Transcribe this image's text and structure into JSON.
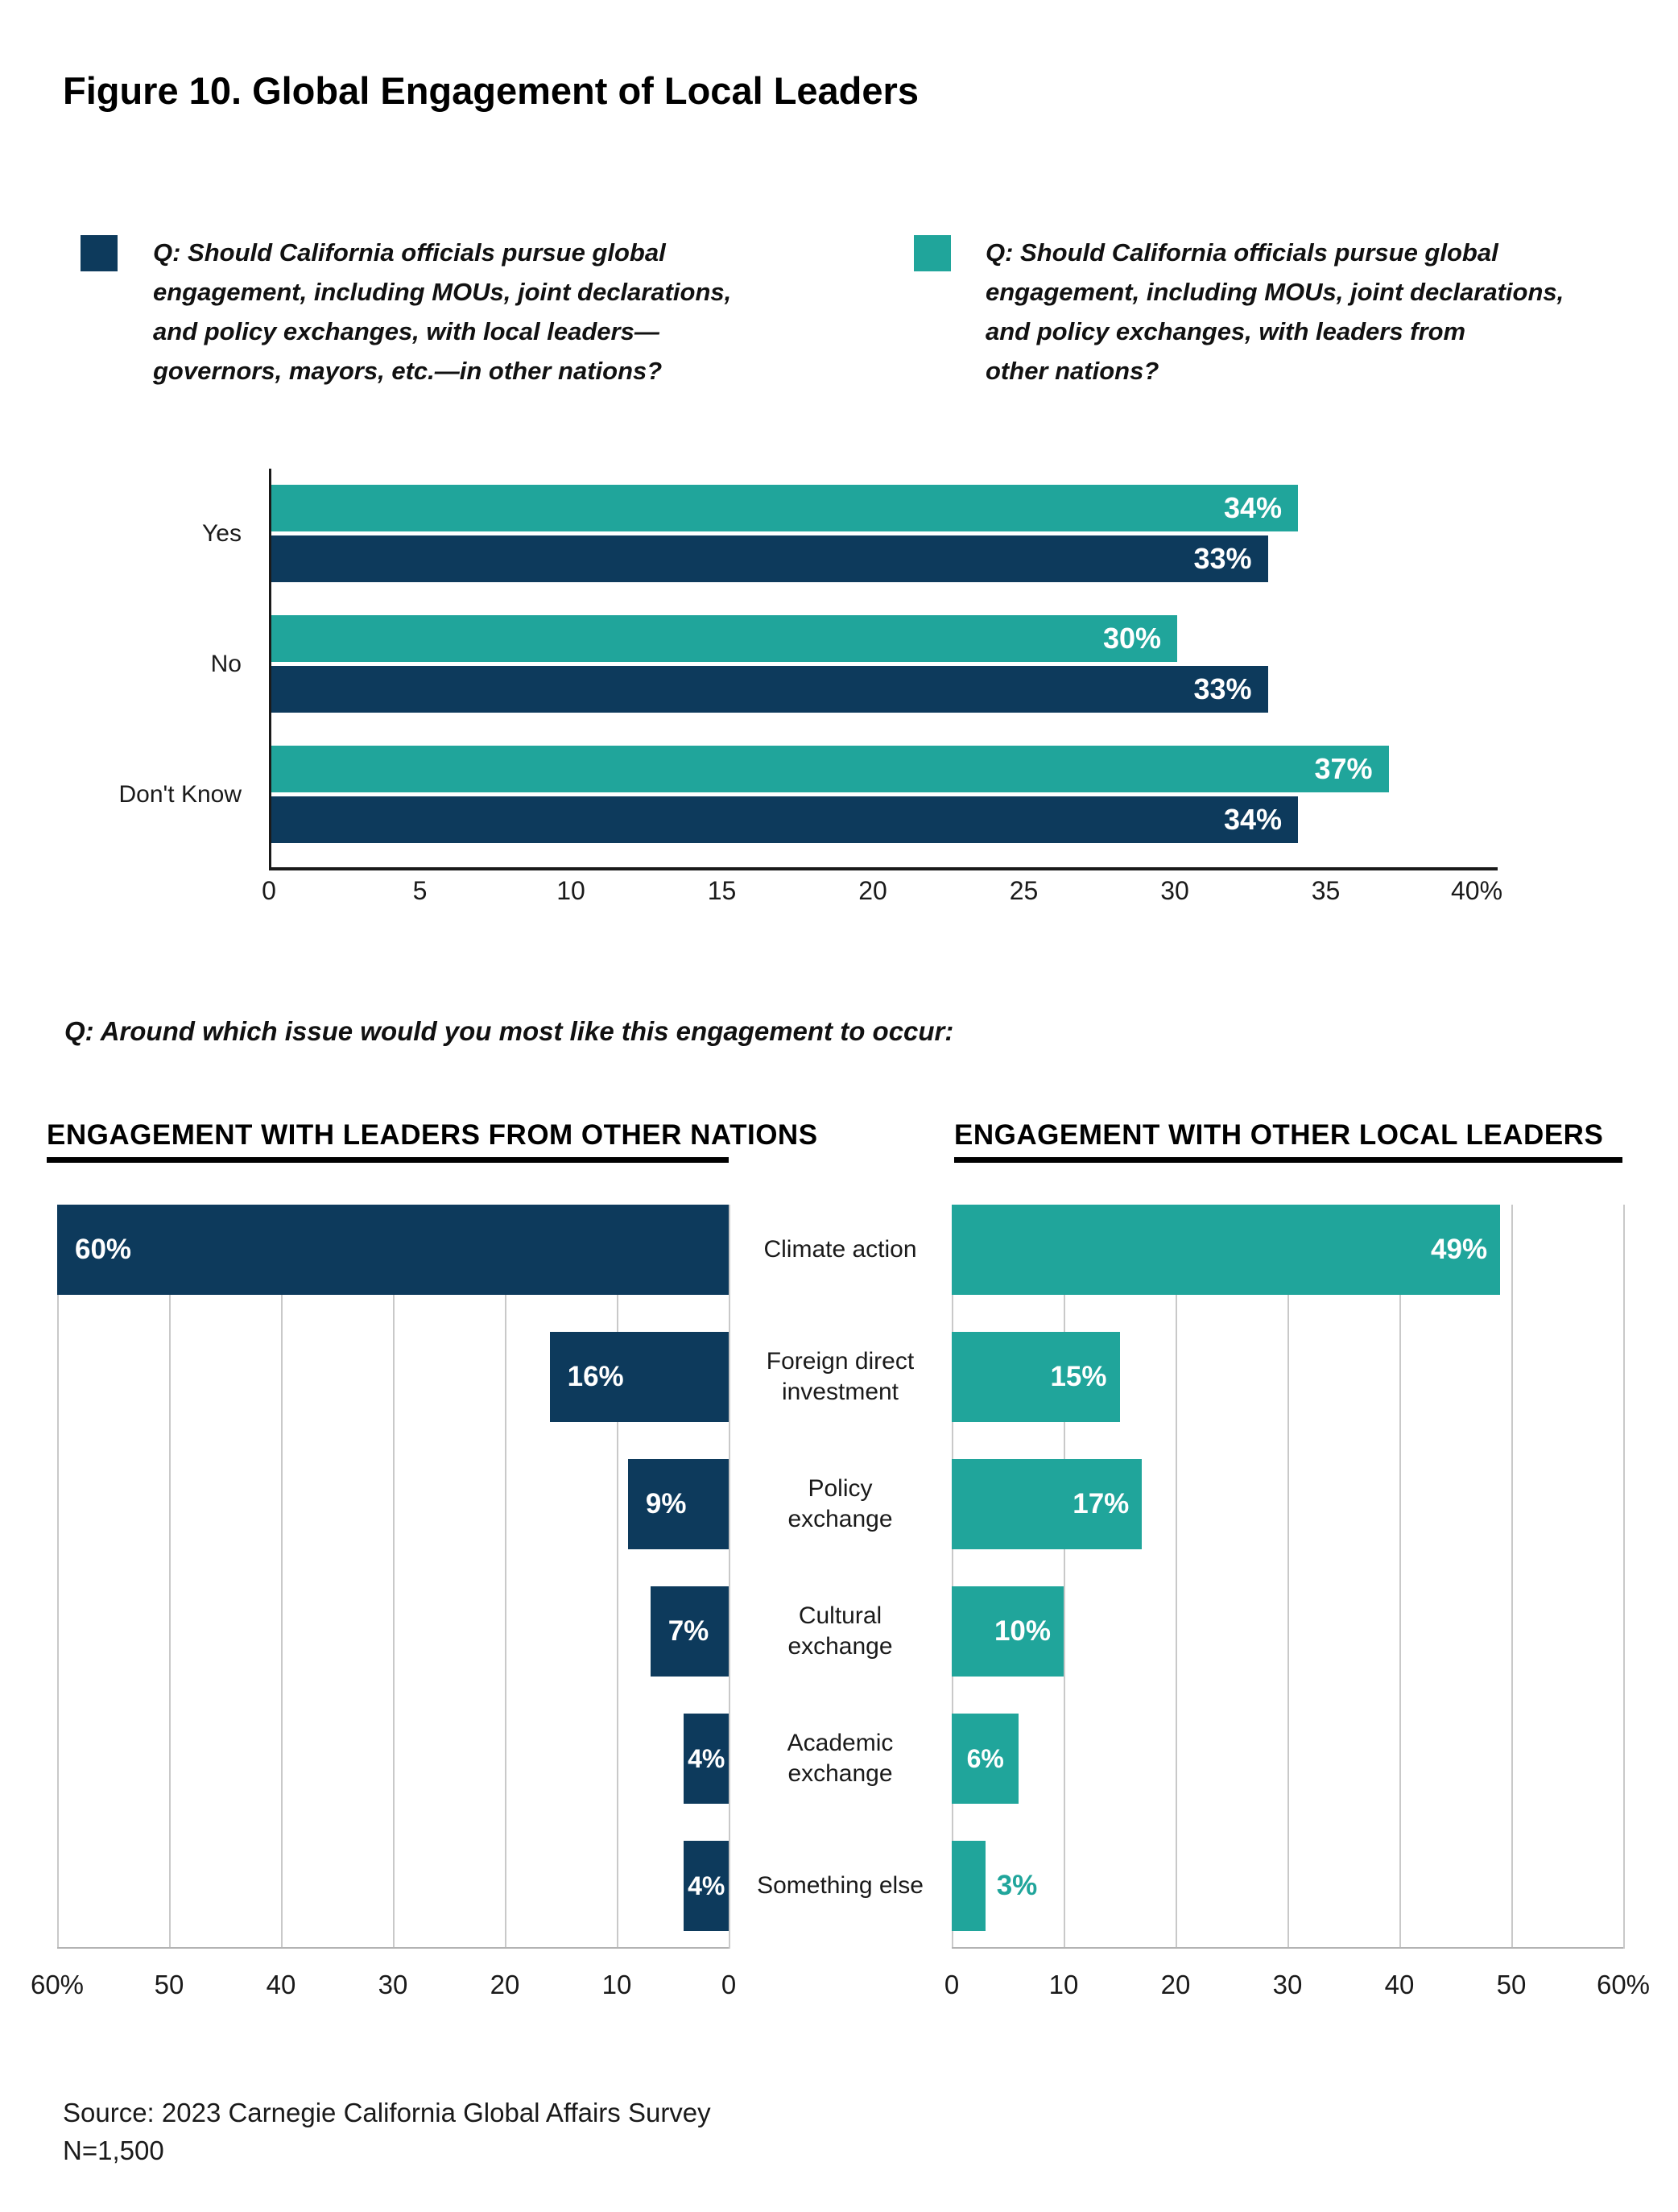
{
  "figure_title": "Figure 10. Global Engagement of Local Leaders",
  "colors": {
    "navy": "#0d3a5c",
    "teal": "#20a59b",
    "grid": "#c9c9c9",
    "axis": "#1a1a1a",
    "axis_light": "#b3b3b3"
  },
  "legend": [
    {
      "color_key": "navy",
      "lines": [
        "Q: Should California officials pursue global",
        "engagement, including MOUs, joint declarations,",
        "and policy exchanges, with local leaders—",
        "governors, mayors, etc.—in other nations?"
      ]
    },
    {
      "color_key": "teal",
      "lines": [
        "Q: Should California officials pursue global",
        "engagement, including MOUs, joint declarations,",
        "and policy exchanges, with leaders from",
        "other nations?"
      ]
    }
  ],
  "question2": "Q: Around which issue would you most like this engagement to occur:",
  "center_labels": [
    [
      "Climate action"
    ],
    [
      "Foreign direct",
      "investment"
    ],
    [
      "Policy",
      "exchange"
    ],
    [
      "Cultural",
      "exchange"
    ],
    [
      "Academic",
      "exchange"
    ],
    [
      "Something else"
    ]
  ],
  "source_lines": [
    "Source: 2023 Carnegie California Global Affairs Survey",
    "N=1,500"
  ],
  "chart_data": [
    {
      "id": "should-officials-pursue-global-engagement",
      "type": "bar",
      "orientation": "horizontal-grouped",
      "categories": [
        "Yes",
        "No",
        "Don't Know"
      ],
      "series": [
        {
          "name": "Q: Should California officials pursue global engagement, including MOUs, joint declarations, and policy exchanges, with leaders from other nations?",
          "color": "#20a59b",
          "values": [
            34,
            30,
            37
          ]
        },
        {
          "name": "Q: Should California officials pursue global engagement, including MOUs, joint declarations, and policy exchanges, with local leaders—governors, mayors, etc.—in other nations?",
          "color": "#0d3a5c",
          "values": [
            33,
            33,
            34
          ]
        }
      ],
      "value_suffix": "%",
      "xlim": [
        0,
        40
      ],
      "xticks": [
        "0",
        "5",
        "10",
        "15",
        "20",
        "25",
        "30",
        "35",
        "40%"
      ],
      "grid": false,
      "legend_position": "top"
    },
    {
      "id": "issues-engagement-leaders-from-other-nations",
      "type": "bar",
      "title": "ENGAGEMENT WITH LEADERS FROM OTHER NATIONS",
      "color": "#0d3a5c",
      "direction": "rtl",
      "categories": [
        "Climate action",
        "Foreign direct investment",
        "Policy exchange",
        "Cultural exchange",
        "Academic exchange",
        "Something else"
      ],
      "values": [
        60,
        16,
        9,
        7,
        4,
        4
      ],
      "value_suffix": "%",
      "xlim": [
        0,
        60
      ],
      "xticks": [
        "60%",
        "50",
        "40",
        "30",
        "20",
        "10",
        "0"
      ],
      "grid": true
    },
    {
      "id": "issues-engagement-other-local-leaders",
      "type": "bar",
      "title": "ENGAGEMENT WITH OTHER LOCAL LEADERS",
      "color": "#20a59b",
      "direction": "ltr",
      "categories": [
        "Climate action",
        "Foreign direct investment",
        "Policy exchange",
        "Cultural exchange",
        "Academic exchange",
        "Something else"
      ],
      "values": [
        49,
        15,
        17,
        10,
        6,
        3
      ],
      "value_suffix": "%",
      "xlim": [
        0,
        60
      ],
      "xticks": [
        "0",
        "10",
        "20",
        "30",
        "40",
        "50",
        "60%"
      ],
      "grid": true,
      "outside_label_max": 3
    }
  ]
}
